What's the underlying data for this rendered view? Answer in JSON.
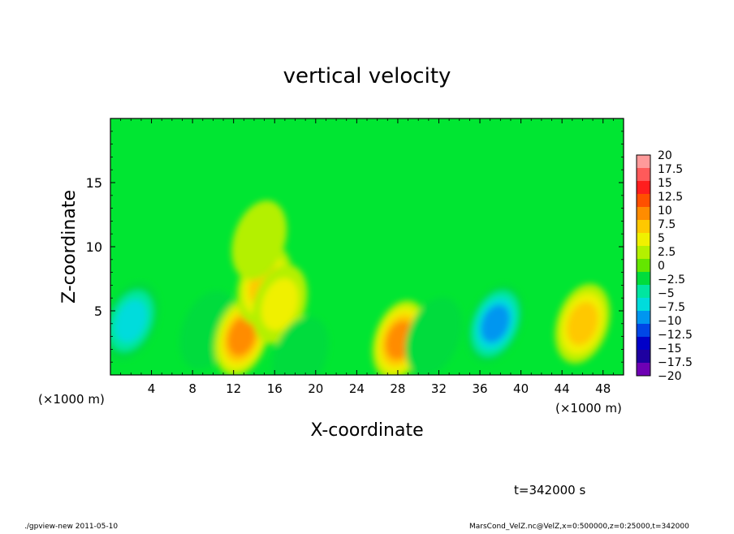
{
  "chart_data": {
    "type": "heatmap",
    "title": "vertical velocity",
    "xlabel": "X-coordinate",
    "ylabel": "Z-coordinate",
    "x_unit_left": "(×1000 m)",
    "x_unit_right": "(×1000 m)",
    "xlim": [
      0,
      50
    ],
    "ylim": [
      0,
      20
    ],
    "x_ticks": [
      4,
      8,
      12,
      16,
      20,
      24,
      28,
      32,
      36,
      40,
      44,
      48
    ],
    "y_ticks": [
      5,
      10,
      15
    ],
    "colorbar": {
      "levels": [
        "20",
        "17.5",
        "15",
        "12.5",
        "10",
        "7.5",
        "5",
        "2.5",
        "0",
        "−2.5",
        "−5",
        "−7.5",
        "−10",
        "−12.5",
        "−15",
        "−17.5",
        "−20"
      ],
      "colors": [
        "#ff9a9a",
        "#ff5a5a",
        "#ff1e1e",
        "#ff5000",
        "#ff8c00",
        "#ffc800",
        "#f0f000",
        "#b4f000",
        "#64e600",
        "#00dc3c",
        "#00e6a0",
        "#00dcdc",
        "#0096f0",
        "#0046e6",
        "#0000c8",
        "#1e00a0",
        "#6e00b4"
      ]
    },
    "features": [
      {
        "x": 2.0,
        "z": 4.2,
        "w": -8.5
      },
      {
        "x": 9.5,
        "z": 3.5,
        "w": -4.0
      },
      {
        "x": 12.8,
        "z": 3.0,
        "w": 11.0
      },
      {
        "x": 15.0,
        "z": 7.0,
        "w": 8.0
      },
      {
        "x": 16.5,
        "z": 5.5,
        "w": 6.0
      },
      {
        "x": 14.5,
        "z": 10.5,
        "w": 3.0
      },
      {
        "x": 18.5,
        "z": 1.5,
        "w": -3.0
      },
      {
        "x": 28.2,
        "z": 2.7,
        "w": 12.0
      },
      {
        "x": 31.5,
        "z": 3.0,
        "w": -4.0
      },
      {
        "x": 37.5,
        "z": 4.0,
        "w": -11.5
      },
      {
        "x": 46.0,
        "z": 4.0,
        "w": 8.5
      }
    ]
  },
  "time_label": "t=342000 s",
  "footer": {
    "left": "./gpview-new  2011-05-10",
    "right": "MarsCond_VelZ.nc@VelZ,x=0:500000,z=0:25000,t=342000"
  }
}
